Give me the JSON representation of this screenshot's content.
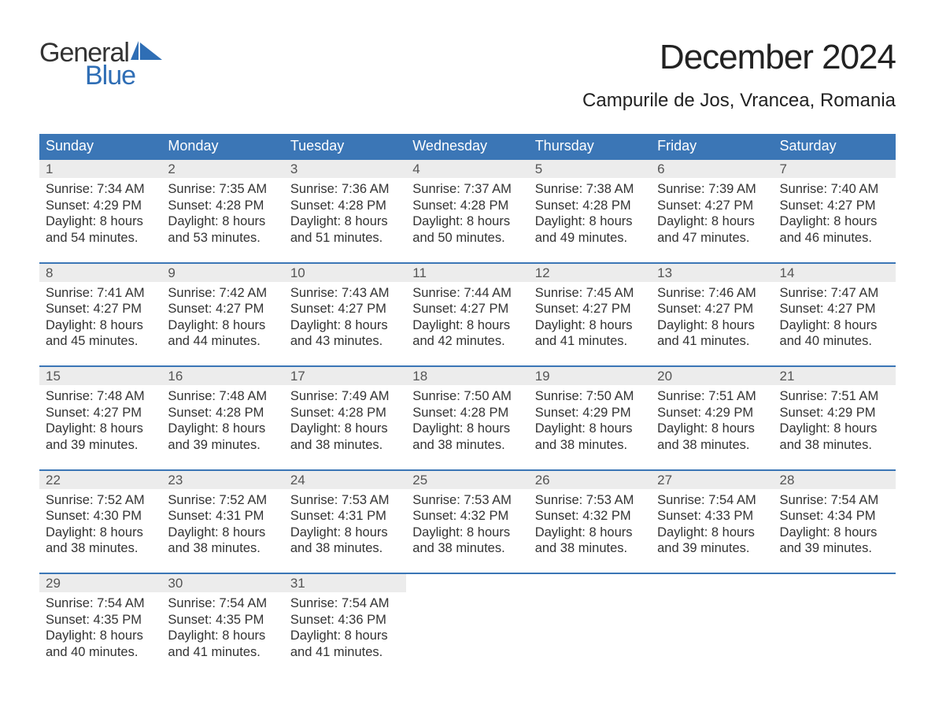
{
  "brand": {
    "part1": "General",
    "part2": "Blue"
  },
  "title": "December 2024",
  "location": "Campurile de Jos, Vrancea, Romania",
  "colors": {
    "header_bg": "#3b76b6",
    "header_text": "#ffffff",
    "daynum_bg": "#ececec",
    "border": "#3b76b6",
    "body_text": "#333333",
    "brand_blue": "#2f6eb5",
    "page_bg": "#ffffff"
  },
  "font": {
    "family": "Arial",
    "title_size": 44,
    "location_size": 24,
    "header_size": 18,
    "cell_size": 16.5
  },
  "weekdays": [
    "Sunday",
    "Monday",
    "Tuesday",
    "Wednesday",
    "Thursday",
    "Friday",
    "Saturday"
  ],
  "weeks": [
    [
      {
        "day": "1",
        "sunrise": "Sunrise: 7:34 AM",
        "sunset": "Sunset: 4:29 PM",
        "d1": "Daylight: 8 hours",
        "d2": "and 54 minutes."
      },
      {
        "day": "2",
        "sunrise": "Sunrise: 7:35 AM",
        "sunset": "Sunset: 4:28 PM",
        "d1": "Daylight: 8 hours",
        "d2": "and 53 minutes."
      },
      {
        "day": "3",
        "sunrise": "Sunrise: 7:36 AM",
        "sunset": "Sunset: 4:28 PM",
        "d1": "Daylight: 8 hours",
        "d2": "and 51 minutes."
      },
      {
        "day": "4",
        "sunrise": "Sunrise: 7:37 AM",
        "sunset": "Sunset: 4:28 PM",
        "d1": "Daylight: 8 hours",
        "d2": "and 50 minutes."
      },
      {
        "day": "5",
        "sunrise": "Sunrise: 7:38 AM",
        "sunset": "Sunset: 4:28 PM",
        "d1": "Daylight: 8 hours",
        "d2": "and 49 minutes."
      },
      {
        "day": "6",
        "sunrise": "Sunrise: 7:39 AM",
        "sunset": "Sunset: 4:27 PM",
        "d1": "Daylight: 8 hours",
        "d2": "and 47 minutes."
      },
      {
        "day": "7",
        "sunrise": "Sunrise: 7:40 AM",
        "sunset": "Sunset: 4:27 PM",
        "d1": "Daylight: 8 hours",
        "d2": "and 46 minutes."
      }
    ],
    [
      {
        "day": "8",
        "sunrise": "Sunrise: 7:41 AM",
        "sunset": "Sunset: 4:27 PM",
        "d1": "Daylight: 8 hours",
        "d2": "and 45 minutes."
      },
      {
        "day": "9",
        "sunrise": "Sunrise: 7:42 AM",
        "sunset": "Sunset: 4:27 PM",
        "d1": "Daylight: 8 hours",
        "d2": "and 44 minutes."
      },
      {
        "day": "10",
        "sunrise": "Sunrise: 7:43 AM",
        "sunset": "Sunset: 4:27 PM",
        "d1": "Daylight: 8 hours",
        "d2": "and 43 minutes."
      },
      {
        "day": "11",
        "sunrise": "Sunrise: 7:44 AM",
        "sunset": "Sunset: 4:27 PM",
        "d1": "Daylight: 8 hours",
        "d2": "and 42 minutes."
      },
      {
        "day": "12",
        "sunrise": "Sunrise: 7:45 AM",
        "sunset": "Sunset: 4:27 PM",
        "d1": "Daylight: 8 hours",
        "d2": "and 41 minutes."
      },
      {
        "day": "13",
        "sunrise": "Sunrise: 7:46 AM",
        "sunset": "Sunset: 4:27 PM",
        "d1": "Daylight: 8 hours",
        "d2": "and 41 minutes."
      },
      {
        "day": "14",
        "sunrise": "Sunrise: 7:47 AM",
        "sunset": "Sunset: 4:27 PM",
        "d1": "Daylight: 8 hours",
        "d2": "and 40 minutes."
      }
    ],
    [
      {
        "day": "15",
        "sunrise": "Sunrise: 7:48 AM",
        "sunset": "Sunset: 4:27 PM",
        "d1": "Daylight: 8 hours",
        "d2": "and 39 minutes."
      },
      {
        "day": "16",
        "sunrise": "Sunrise: 7:48 AM",
        "sunset": "Sunset: 4:28 PM",
        "d1": "Daylight: 8 hours",
        "d2": "and 39 minutes."
      },
      {
        "day": "17",
        "sunrise": "Sunrise: 7:49 AM",
        "sunset": "Sunset: 4:28 PM",
        "d1": "Daylight: 8 hours",
        "d2": "and 38 minutes."
      },
      {
        "day": "18",
        "sunrise": "Sunrise: 7:50 AM",
        "sunset": "Sunset: 4:28 PM",
        "d1": "Daylight: 8 hours",
        "d2": "and 38 minutes."
      },
      {
        "day": "19",
        "sunrise": "Sunrise: 7:50 AM",
        "sunset": "Sunset: 4:29 PM",
        "d1": "Daylight: 8 hours",
        "d2": "and 38 minutes."
      },
      {
        "day": "20",
        "sunrise": "Sunrise: 7:51 AM",
        "sunset": "Sunset: 4:29 PM",
        "d1": "Daylight: 8 hours",
        "d2": "and 38 minutes."
      },
      {
        "day": "21",
        "sunrise": "Sunrise: 7:51 AM",
        "sunset": "Sunset: 4:29 PM",
        "d1": "Daylight: 8 hours",
        "d2": "and 38 minutes."
      }
    ],
    [
      {
        "day": "22",
        "sunrise": "Sunrise: 7:52 AM",
        "sunset": "Sunset: 4:30 PM",
        "d1": "Daylight: 8 hours",
        "d2": "and 38 minutes."
      },
      {
        "day": "23",
        "sunrise": "Sunrise: 7:52 AM",
        "sunset": "Sunset: 4:31 PM",
        "d1": "Daylight: 8 hours",
        "d2": "and 38 minutes."
      },
      {
        "day": "24",
        "sunrise": "Sunrise: 7:53 AM",
        "sunset": "Sunset: 4:31 PM",
        "d1": "Daylight: 8 hours",
        "d2": "and 38 minutes."
      },
      {
        "day": "25",
        "sunrise": "Sunrise: 7:53 AM",
        "sunset": "Sunset: 4:32 PM",
        "d1": "Daylight: 8 hours",
        "d2": "and 38 minutes."
      },
      {
        "day": "26",
        "sunrise": "Sunrise: 7:53 AM",
        "sunset": "Sunset: 4:32 PM",
        "d1": "Daylight: 8 hours",
        "d2": "and 38 minutes."
      },
      {
        "day": "27",
        "sunrise": "Sunrise: 7:54 AM",
        "sunset": "Sunset: 4:33 PM",
        "d1": "Daylight: 8 hours",
        "d2": "and 39 minutes."
      },
      {
        "day": "28",
        "sunrise": "Sunrise: 7:54 AM",
        "sunset": "Sunset: 4:34 PM",
        "d1": "Daylight: 8 hours",
        "d2": "and 39 minutes."
      }
    ],
    [
      {
        "day": "29",
        "sunrise": "Sunrise: 7:54 AM",
        "sunset": "Sunset: 4:35 PM",
        "d1": "Daylight: 8 hours",
        "d2": "and 40 minutes."
      },
      {
        "day": "30",
        "sunrise": "Sunrise: 7:54 AM",
        "sunset": "Sunset: 4:35 PM",
        "d1": "Daylight: 8 hours",
        "d2": "and 41 minutes."
      },
      {
        "day": "31",
        "sunrise": "Sunrise: 7:54 AM",
        "sunset": "Sunset: 4:36 PM",
        "d1": "Daylight: 8 hours",
        "d2": "and 41 minutes."
      },
      null,
      null,
      null,
      null
    ]
  ]
}
